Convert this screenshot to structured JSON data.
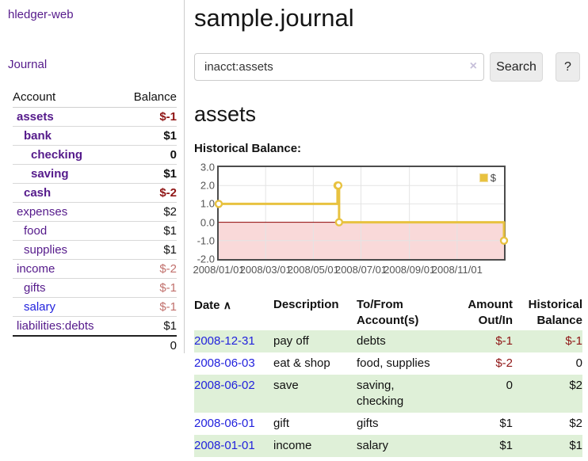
{
  "sidebar": {
    "brand": "hledger-web",
    "nav_journal": "Journal",
    "accounts": {
      "col_account": "Account",
      "col_balance": "Balance",
      "rows": [
        {
          "name": "assets",
          "balance": "$-1",
          "cls": "d1 bold",
          "bcls": "neg bold"
        },
        {
          "name": "bank",
          "balance": "$1",
          "cls": "d2 bold",
          "bcls": "bold"
        },
        {
          "name": "checking",
          "balance": "0",
          "cls": "d3 bold",
          "bcls": "bold"
        },
        {
          "name": "saving",
          "balance": "$1",
          "cls": "d3 bold",
          "bcls": "bold"
        },
        {
          "name": "cash",
          "balance": "$-2",
          "cls": "d2 bold",
          "bcls": "neg bold"
        },
        {
          "name": "expenses",
          "balance": "$2",
          "cls": "d1",
          "bcls": ""
        },
        {
          "name": "food",
          "balance": "$1",
          "cls": "d2",
          "bcls": ""
        },
        {
          "name": "supplies",
          "balance": "$1",
          "cls": "d2",
          "bcls": ""
        },
        {
          "name": "income",
          "balance": "$-2",
          "cls": "d1",
          "bcls": "negsoft"
        },
        {
          "name": "gifts",
          "balance": "$-1",
          "cls": "d2",
          "bcls": "negsoft"
        },
        {
          "name": "salary",
          "balance": "$-1",
          "cls": "d2 blue",
          "bcls": "negsoft"
        },
        {
          "name": "liabilities:debts",
          "balance": "$1",
          "cls": "d1",
          "bcls": ""
        }
      ],
      "total": "0"
    }
  },
  "main": {
    "title": "sample.journal",
    "search": {
      "value": "inacct:assets",
      "clear_icon": "×",
      "button": "Search",
      "help": "?"
    },
    "heading": "assets",
    "chart_title": "Historical Balance:"
  },
  "chart_data": {
    "type": "line",
    "title": "Historical Balance",
    "step": true,
    "series": [
      {
        "name": "$",
        "color": "#e8c240",
        "points": [
          [
            "2008-01-01",
            1
          ],
          [
            "2008-06-01",
            2
          ],
          [
            "2008-06-02",
            2
          ],
          [
            "2008-06-03",
            0
          ],
          [
            "2008-12-31",
            -1
          ]
        ]
      }
    ],
    "xrange": [
      "2008-01-01",
      "2008-12-31"
    ],
    "ylim": [
      -2,
      3
    ],
    "ytick_labels": [
      "3.0",
      "2.0",
      "1.0",
      "0.0",
      "-1.0",
      "-2.0"
    ],
    "xticks": [
      "2008/01/01",
      "2008/03/01",
      "2008/05/01",
      "2008/07/01",
      "2008/09/01",
      "2008/11/01"
    ],
    "ygrid": [
      2,
      1,
      -1
    ],
    "legend_label": "$",
    "legend_position": "top-right",
    "grid": true,
    "negative_region_color": "#f9d9d9",
    "zero_line_color": "#8b0000",
    "grid_color": "#e4e4e4",
    "axis_color": "#545454"
  },
  "register": {
    "columns": {
      "date": "Date",
      "description": "Description",
      "accounts": "To/From Account(s)",
      "amount": "Amount Out/In",
      "balance": "Historical Balance"
    },
    "sort_icon": "∧",
    "rows": [
      {
        "date": "2008-12-31",
        "description": "pay off",
        "accounts": "debts",
        "amount": "$-1",
        "balance": "$-1",
        "acls": "neg",
        "hcls": "neg",
        "stripe": "green"
      },
      {
        "date": "2008-06-03",
        "description": "eat & shop",
        "accounts": "food, supplies",
        "amount": "$-2",
        "balance": "0",
        "acls": "neg",
        "hcls": "",
        "stripe": ""
      },
      {
        "date": "2008-06-02",
        "description": "save",
        "accounts": "saving, checking",
        "amount": "0",
        "balance": "$2",
        "acls": "",
        "hcls": "",
        "stripe": "green"
      },
      {
        "date": "2008-06-01",
        "description": "gift",
        "accounts": "gifts",
        "amount": "$1",
        "balance": "$2",
        "acls": "",
        "hcls": "",
        "stripe": ""
      },
      {
        "date": "2008-01-01",
        "description": "income",
        "accounts": "salary",
        "amount": "$1",
        "balance": "$1",
        "acls": "",
        "hcls": "",
        "stripe": "green"
      }
    ]
  }
}
